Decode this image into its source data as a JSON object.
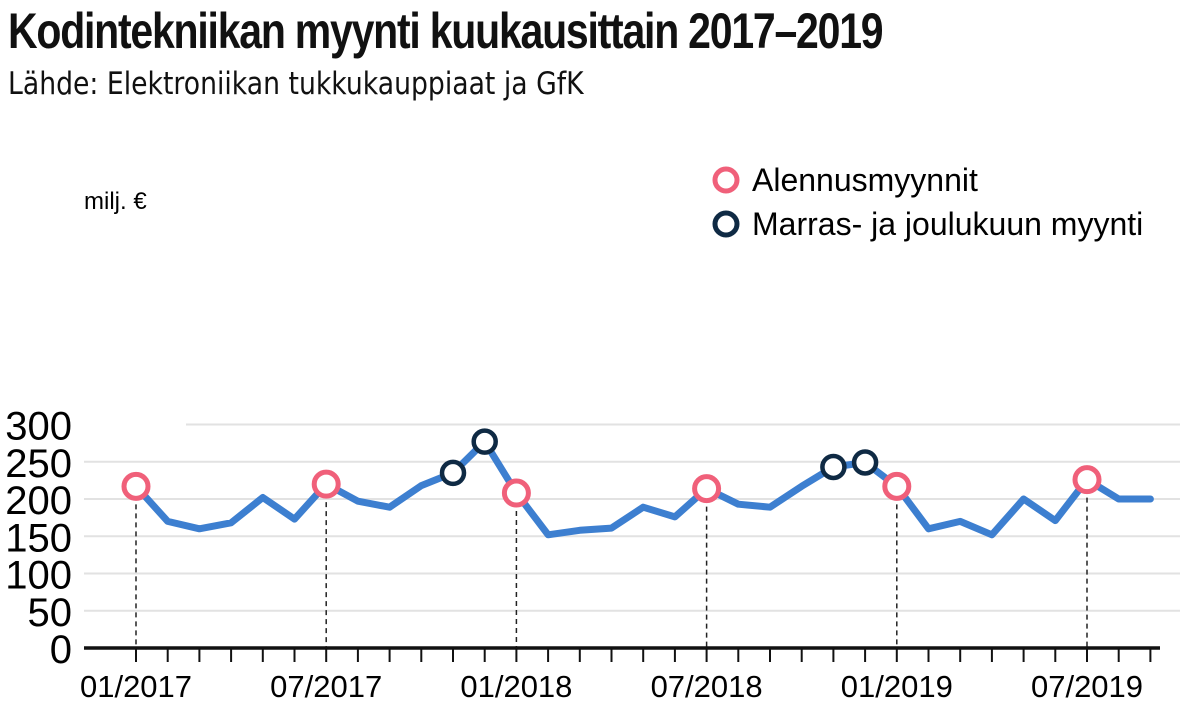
{
  "chart_data": {
    "type": "line",
    "title": "Kodintekniikan myynti kuukausittain 2017–2019",
    "subtitle": "Lähde: Elektroniikan tukkukauppiaat ja GfK",
    "ylabel": "milj. €",
    "ylim": [
      0,
      300
    ],
    "yticks": [
      "0",
      "50",
      "100",
      "150",
      "200",
      "250",
      "300"
    ],
    "xtick_labels": [
      "01/2017",
      "07/2017",
      "01/2018",
      "07/2018",
      "01/2019",
      "07/2019"
    ],
    "x": [
      "01/2017",
      "02/2017",
      "03/2017",
      "04/2017",
      "05/2017",
      "06/2017",
      "07/2017",
      "08/2017",
      "09/2017",
      "10/2017",
      "11/2017",
      "12/2017",
      "01/2018",
      "02/2018",
      "03/2018",
      "04/2018",
      "05/2018",
      "06/2018",
      "07/2018",
      "08/2018",
      "09/2018",
      "10/2018",
      "11/2018",
      "12/2018",
      "01/2019",
      "02/2019",
      "03/2019",
      "04/2019",
      "05/2019",
      "06/2019",
      "07/2019",
      "08/2019",
      "09/2019"
    ],
    "series": [
      {
        "values": [
          217,
          170,
          160,
          168,
          202,
          173,
          220,
          197,
          189,
          218,
          235,
          277,
          208,
          152,
          158,
          161,
          189,
          176,
          214,
          193,
          189,
          217,
          243,
          249,
          217,
          160,
          170,
          152,
          200,
          171,
          226,
          200,
          200
        ],
        "color": "#3d7fd0"
      }
    ],
    "legend": [
      {
        "label": "Alennusmyynnit",
        "color": "#f0607a"
      },
      {
        "label": "Marras- ja joulukuun myynti",
        "color": "#0f2a44"
      }
    ],
    "sale_months": [
      "01/2017",
      "07/2017",
      "01/2018",
      "07/2018",
      "01/2019",
      "07/2019"
    ],
    "holiday_months": [
      "11/2017",
      "12/2017",
      "11/2018",
      "12/2018"
    ],
    "grid": true,
    "legend_position": "top-right"
  }
}
